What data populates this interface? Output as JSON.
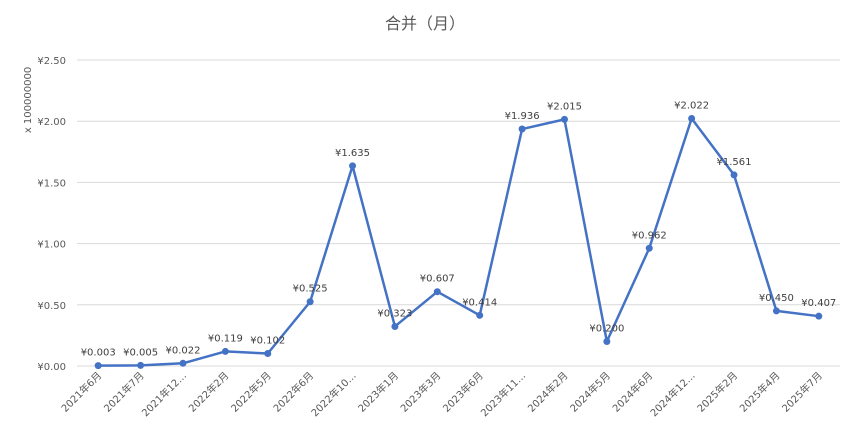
{
  "chart_data": {
    "type": "line",
    "title": "合并（月）",
    "ylabel": "x 100000000",
    "xlabel": "",
    "ylim": [
      0,
      2.5
    ],
    "yticks": [
      "¥0.00",
      "¥0.50",
      "¥1.00",
      "¥1.50",
      "¥2.00",
      "¥2.50"
    ],
    "grid": true,
    "categories": [
      "2021年6月",
      "2021年7月",
      "2021年12…",
      "2022年2月",
      "2022年5月",
      "2022年6月",
      "2022年10…",
      "2023年1月",
      "2023年3月",
      "2023年6月",
      "2023年11…",
      "2024年2月",
      "2024年5月",
      "2024年6月",
      "2024年12…",
      "2025年2月",
      "2025年4月",
      "2025年7月"
    ],
    "values": [
      0.003,
      0.005,
      0.022,
      0.119,
      0.102,
      0.525,
      1.635,
      0.323,
      0.607,
      0.414,
      1.936,
      2.015,
      0.2,
      0.962,
      2.022,
      1.561,
      0.45,
      0.407
    ],
    "data_labels": [
      "¥0.003",
      "¥0.005",
      "¥0.022",
      "¥0.119",
      "¥0.102",
      "¥0.525",
      "¥1.635",
      "¥0.323",
      "¥0.607",
      "¥0.414",
      "¥1.936",
      "¥2.015",
      "¥0.200",
      "¥0.962",
      "¥2.022",
      "¥1.561",
      "¥0.450",
      "¥0.407"
    ],
    "line_color": "#4472c4"
  }
}
